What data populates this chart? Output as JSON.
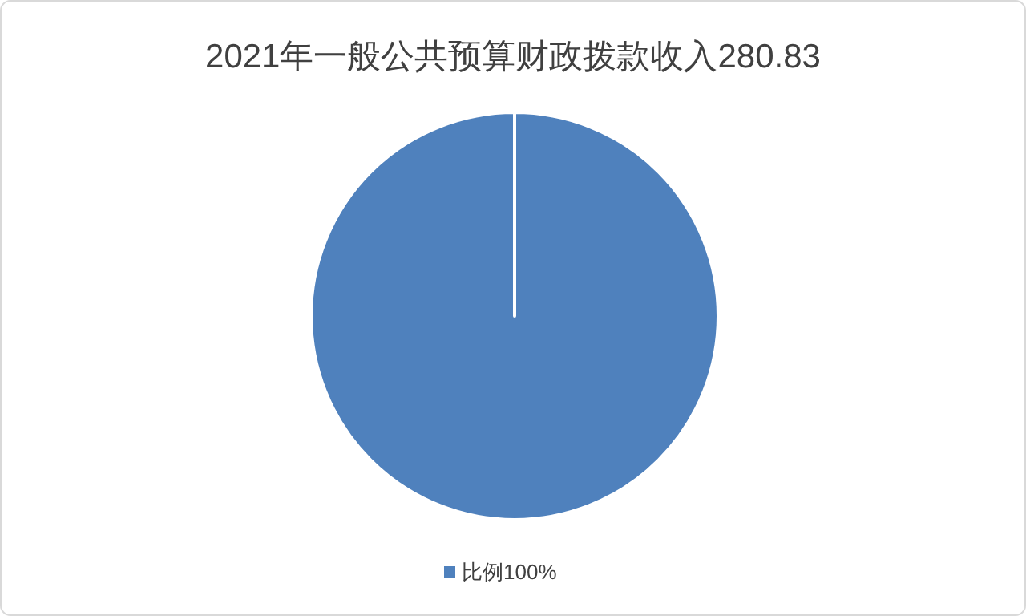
{
  "chart_data": {
    "type": "pie",
    "title": "2021年一般公共预算财政拨款收入280.83",
    "categories": [
      "比例100%"
    ],
    "values": [
      100
    ],
    "colors": [
      "#4f81bd"
    ],
    "legend": "bottom"
  }
}
